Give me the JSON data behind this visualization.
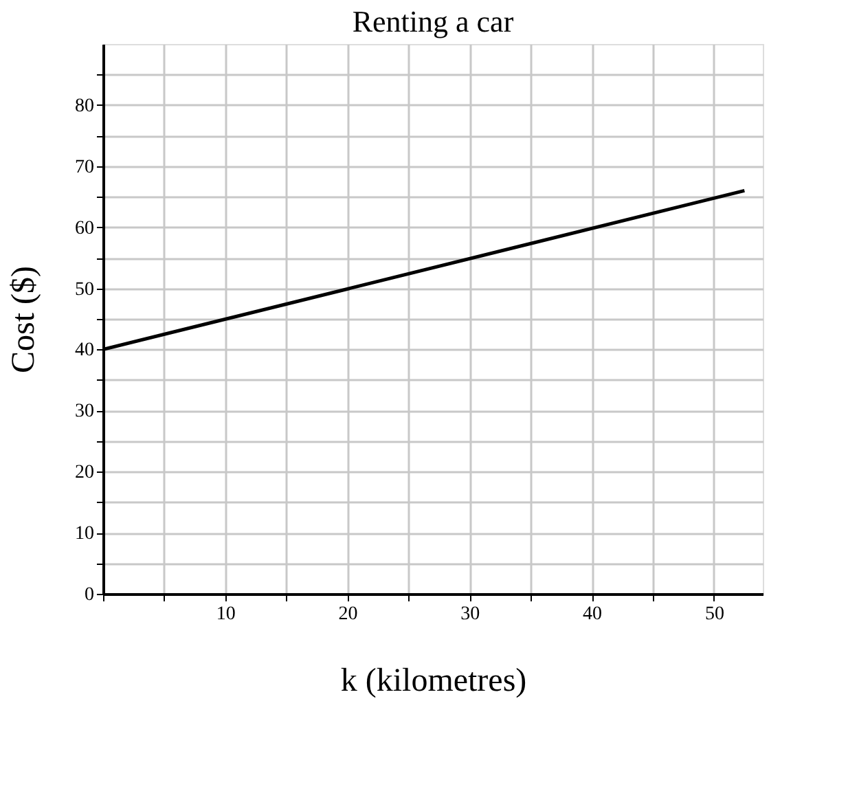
{
  "chart_data": {
    "type": "line",
    "title": "Renting a car",
    "xlabel": "k (kilometres)",
    "ylabel": "Cost ($)",
    "x": [
      0,
      52.5
    ],
    "series": [
      {
        "color": "#000000",
        "values": [
          40,
          66
        ]
      }
    ],
    "xlim": [
      0,
      54
    ],
    "ylim": [
      0,
      90
    ],
    "xticks": [
      {
        "value": 0,
        "label": null
      },
      {
        "value": 5,
        "label": null
      },
      10,
      {
        "value": 15,
        "label": null
      },
      20,
      {
        "value": 25,
        "label": null
      },
      30,
      {
        "value": 35,
        "label": null
      },
      40,
      {
        "value": 45,
        "label": null
      },
      50
    ],
    "yticks": [
      0,
      {
        "value": 5,
        "label": null
      },
      10,
      {
        "value": 15,
        "label": null
      },
      20,
      {
        "value": 25,
        "label": null
      },
      30,
      {
        "value": 35,
        "label": null
      },
      40,
      {
        "value": 45,
        "label": null
      },
      50,
      {
        "value": 55,
        "label": null
      },
      60,
      {
        "value": 65,
        "label": null
      },
      70,
      {
        "value": 75,
        "label": null
      },
      80,
      {
        "value": 85,
        "label": null
      }
    ],
    "grid": true,
    "marker": "none",
    "line_style": "solid"
  }
}
